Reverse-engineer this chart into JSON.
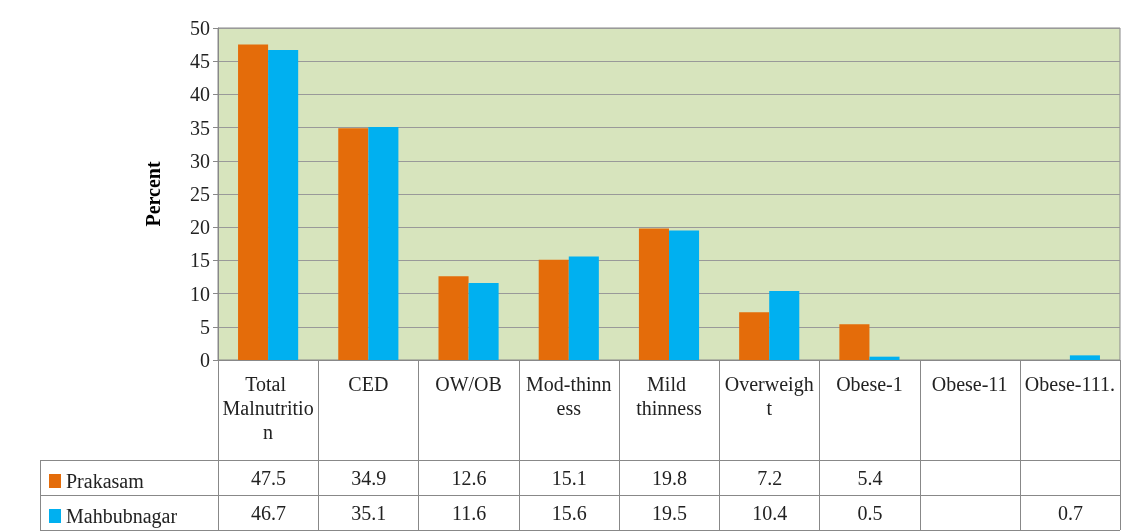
{
  "chart_data": {
    "type": "bar",
    "ylabel": "Percent",
    "categories": [
      "Total Malnutrition",
      "CED",
      "OW/OB",
      "Mod-thinness",
      "Mild thinness",
      "Overweight",
      "Obese-1",
      "Obese-11",
      "Obese-111."
    ],
    "series": [
      {
        "name": "Prakasam",
        "color": "#e46c0a",
        "values": [
          47.5,
          34.9,
          12.6,
          15.1,
          19.8,
          7.2,
          5.4,
          null,
          null
        ]
      },
      {
        "name": "Mahbubnagar",
        "color": "#00b0f0",
        "values": [
          46.7,
          35.1,
          11.6,
          15.6,
          19.5,
          10.4,
          0.5,
          null,
          0.7
        ]
      }
    ],
    "ylim": [
      0,
      50
    ],
    "yticks": [
      0,
      5,
      10,
      15,
      20,
      25,
      30,
      35,
      40,
      45,
      50
    ],
    "grid": "y",
    "legend": "bottom",
    "data_labels": true
  }
}
